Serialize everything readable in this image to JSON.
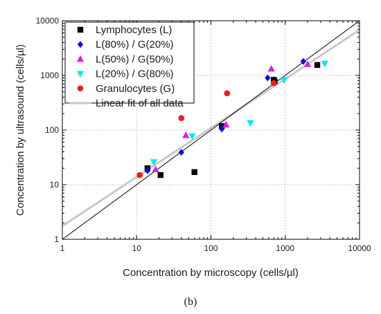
{
  "panel_label": "(b)",
  "chart_data": {
    "type": "scatter",
    "xscale": "log",
    "yscale": "log",
    "xlim": [
      1,
      10000
    ],
    "ylim": [
      1,
      10000
    ],
    "x_ticks": [
      1,
      10,
      100,
      1000,
      10000
    ],
    "y_ticks": [
      1,
      10,
      100,
      1000,
      10000
    ],
    "x_tick_labels": [
      "1",
      "10",
      "100",
      "1000",
      "10000"
    ],
    "y_tick_labels": [
      "1",
      "10",
      "100",
      "1000",
      "10000"
    ],
    "xlabel": "Concentration by microscopy (cells/µl)",
    "ylabel": "Concentration by ultrasound (cells/µl)",
    "grid": true,
    "legend_position": "top-left",
    "series": [
      {
        "name": "Lymphocytes (L)",
        "marker": "square",
        "color": "#000000",
        "points": [
          [
            14,
            20
          ],
          [
            21,
            15
          ],
          [
            60,
            17
          ],
          [
            140,
            118
          ],
          [
            700,
            830
          ],
          [
            720,
            780
          ],
          [
            2700,
            1550
          ]
        ]
      },
      {
        "name": "L(80%) / G(20%)",
        "marker": "diamond",
        "color": "#1010d0",
        "points": [
          [
            14,
            18
          ],
          [
            40,
            39
          ],
          [
            140,
            105
          ],
          [
            580,
            900
          ],
          [
            1750,
            1800
          ]
        ]
      },
      {
        "name": "L(50%) / G(50%)",
        "marker": "triangle-up",
        "color": "#e020e0",
        "points": [
          [
            18,
            19
          ],
          [
            46,
            80
          ],
          [
            160,
            125
          ],
          [
            650,
            1320
          ],
          [
            2000,
            1600
          ]
        ]
      },
      {
        "name": "L(20%) / G(80%)",
        "marker": "triangle-down",
        "color": "#00e8f0",
        "points": [
          [
            17,
            26
          ],
          [
            56,
            77
          ],
          [
            340,
            135
          ],
          [
            960,
            820
          ],
          [
            3400,
            1650
          ]
        ]
      },
      {
        "name": "Granulocytes (G)",
        "marker": "circle",
        "color": "#e82020",
        "points": [
          [
            11,
            15
          ],
          [
            40,
            165
          ],
          [
            165,
            470
          ],
          [
            700,
            720
          ]
        ]
      },
      {
        "name": "Linear fit of all data",
        "line": true,
        "color": "#c8c8c8",
        "points": [
          [
            1,
            1.75
          ],
          [
            10000,
            6800
          ]
        ]
      }
    ],
    "identity_line": {
      "color": "#000000",
      "points": [
        [
          1,
          1
        ],
        [
          10000,
          10000
        ]
      ]
    }
  }
}
